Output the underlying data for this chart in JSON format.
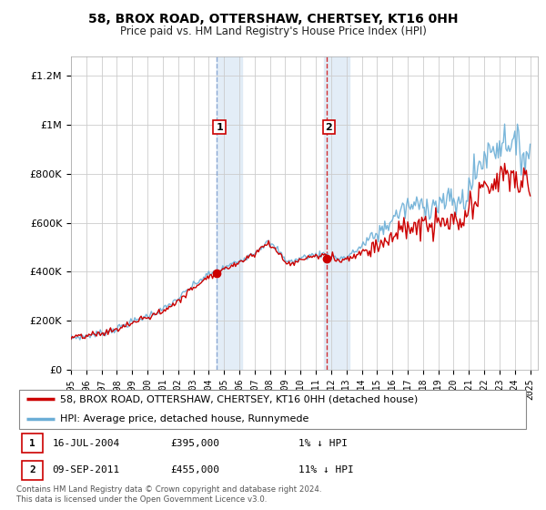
{
  "title": "58, BROX ROAD, OTTERSHAW, CHERTSEY, KT16 0HH",
  "subtitle": "Price paid vs. HM Land Registry's House Price Index (HPI)",
  "background_color": "#ffffff",
  "grid_color": "#cccccc",
  "sale1_date": "16-JUL-2004",
  "sale1_price": 395000,
  "sale2_date": "09-SEP-2011",
  "sale2_price": 455000,
  "sale1_hpi": "1% ↓ HPI",
  "sale2_hpi": "11% ↓ HPI",
  "legend_line1": "58, BROX ROAD, OTTERSHAW, CHERTSEY, KT16 0HH (detached house)",
  "legend_line2": "HPI: Average price, detached house, Runnymede",
  "footer": "Contains HM Land Registry data © Crown copyright and database right 2024.\nThis data is licensed under the Open Government Licence v3.0.",
  "hpi_color": "#6baed6",
  "price_color": "#cc0000",
  "shade_color": "#dce9f5",
  "sale1_x": 2004.54,
  "sale2_x": 2011.69,
  "yticks": [
    0,
    200000,
    400000,
    600000,
    800000,
    1000000,
    1200000
  ],
  "ylim": [
    0,
    1280000
  ],
  "xlim_start": 1995,
  "xlim_end": 2025.5
}
